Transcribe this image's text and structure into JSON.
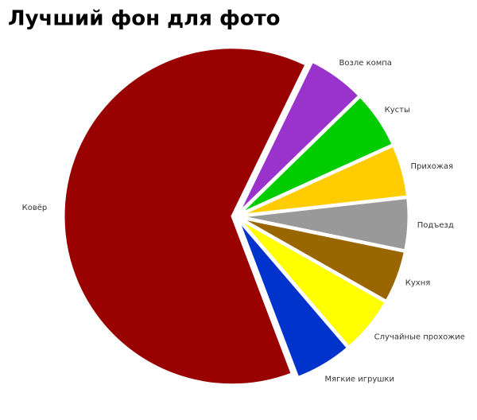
{
  "chart_data": {
    "type": "pie",
    "title": "Лучший фон для фото",
    "categories": [
      "Возле компа",
      "Кусты",
      "Прихожая",
      "Подъезд",
      "Кухня",
      "Случайные прохожие",
      "Мягкие игрушки",
      "Ковёр"
    ],
    "values": [
      5.5,
      5.5,
      5,
      5,
      5,
      5.5,
      5.5,
      63
    ],
    "colors": [
      "#9933cc",
      "#00cc00",
      "#ffcc00",
      "#999999",
      "#996600",
      "#ffff00",
      "#0033cc",
      "#990000"
    ]
  }
}
